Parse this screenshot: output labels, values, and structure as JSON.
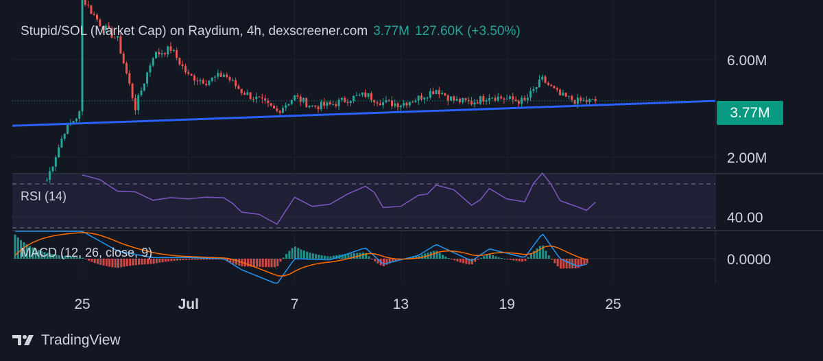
{
  "header": {
    "title": "Stupid/SOL (Market Cap) on Raydium, 4h, dexscreener.com",
    "last_value": "3.77M",
    "change": "127.60K (+3.50%)"
  },
  "price_tag": "3.77M",
  "indicators": {
    "rsi_label": "RSI (14)",
    "macd_label": "MACD (12, 26, close, 9)"
  },
  "brand": "TradingView",
  "colors": {
    "background": "#131722",
    "up": "#26a69a",
    "down": "#ef5350",
    "trendline": "#2962ff",
    "rsi": "#7e57c2",
    "macd": "#2196f3",
    "signal": "#ff6d00"
  },
  "chart_data": [
    {
      "type": "candlestick",
      "title": "Stupid/SOL (Market Cap) on Raydium, 4h, dexscreener.com",
      "y_scale": "log",
      "y_ticks": [
        "6.00M",
        "2.00M"
      ],
      "x_ticks": [
        "25",
        "Jul",
        "7",
        "13",
        "19",
        "25"
      ],
      "last_value": 3.77,
      "series": [
        {
          "values": [
            {
              "x": "Jun 23",
              "close": 1.55
            },
            {
              "x": "Jun 24",
              "close": 2.7
            },
            {
              "x": "Jun 25",
              "close": 3.4
            },
            {
              "x": "Jun 25",
              "close": 12.0
            },
            {
              "x": "Jun 26",
              "close": 9.0
            },
            {
              "x": "Jun 27",
              "close": 7.5
            },
            {
              "x": "Jun 28",
              "close": 3.5
            },
            {
              "x": "Jun 29",
              "close": 6.3
            },
            {
              "x": "Jun 30",
              "close": 6.8
            },
            {
              "x": "Jul 1",
              "close": 5.0
            },
            {
              "x": "Jul 2",
              "close": 4.7
            },
            {
              "x": "Jul 3",
              "close": 5.1
            },
            {
              "x": "Jul 4",
              "close": 4.2
            },
            {
              "x": "Jul 5",
              "close": 3.8
            },
            {
              "x": "Jul 6",
              "close": 3.35
            },
            {
              "x": "Jul 7",
              "close": 3.95
            },
            {
              "x": "Jul 8",
              "close": 3.55
            },
            {
              "x": "Jul 9",
              "close": 3.6
            },
            {
              "x": "Jul 10",
              "close": 3.85
            },
            {
              "x": "Jul 11",
              "close": 4.05
            },
            {
              "x": "Jul 12",
              "close": 3.7
            },
            {
              "x": "Jul 13",
              "close": 3.65
            },
            {
              "x": "Jul 14",
              "close": 3.9
            },
            {
              "x": "Jul 15",
              "close": 4.3
            },
            {
              "x": "Jul 16",
              "close": 3.8
            },
            {
              "x": "Jul 17",
              "close": 3.7
            },
            {
              "x": "Jul 18",
              "close": 4.0
            },
            {
              "x": "Jul 19",
              "close": 3.85
            },
            {
              "x": "Jul 20",
              "close": 3.75
            },
            {
              "x": "Jul 21",
              "close": 4.8
            },
            {
              "x": "Jul 22",
              "close": 4.0
            },
            {
              "x": "Jul 23",
              "close": 3.75
            },
            {
              "x": "Jul 24",
              "close": 3.77
            }
          ]
        },
        {
          "name": "Trendline",
          "values": [
            {
              "x": "Jun 20",
              "y": 2.85
            },
            {
              "x": "Jul 28",
              "y": 3.77
            }
          ]
        }
      ],
      "grid": true
    },
    {
      "type": "line",
      "title": "RSI (14)",
      "y_ticks": [
        "40.00"
      ],
      "series": [
        {
          "name": "RSI",
          "values": [
            {
              "x": "Jun 25",
              "y": 80
            },
            {
              "x": "Jun 27",
              "y": 62
            },
            {
              "x": "Jun 29",
              "y": 56
            },
            {
              "x": "Jul 1",
              "y": 56
            },
            {
              "x": "Jul 3",
              "y": 55
            },
            {
              "x": "Jul 4",
              "y": 45
            },
            {
              "x": "Jul 6",
              "y": 32
            },
            {
              "x": "Jul 7",
              "y": 55
            },
            {
              "x": "Jul 9",
              "y": 54
            },
            {
              "x": "Jul 11",
              "y": 65
            },
            {
              "x": "Jul 12",
              "y": 50
            },
            {
              "x": "Jul 14",
              "y": 58
            },
            {
              "x": "Jul 15",
              "y": 68
            },
            {
              "x": "Jul 17",
              "y": 53
            },
            {
              "x": "Jul 18",
              "y": 64
            },
            {
              "x": "Jul 20",
              "y": 56
            },
            {
              "x": "Jul 21",
              "y": 78
            },
            {
              "x": "Jul 22",
              "y": 55
            },
            {
              "x": "Jul 23",
              "y": 48
            },
            {
              "x": "Jul 24",
              "y": 52
            }
          ]
        }
      ]
    },
    {
      "type": "bar",
      "title": "MACD (12, 26, close, 9)",
      "y_ticks": [
        "0.0000"
      ],
      "series": [
        {
          "name": "Histogram"
        },
        {
          "name": "MACD"
        },
        {
          "name": "Signal"
        }
      ]
    }
  ]
}
